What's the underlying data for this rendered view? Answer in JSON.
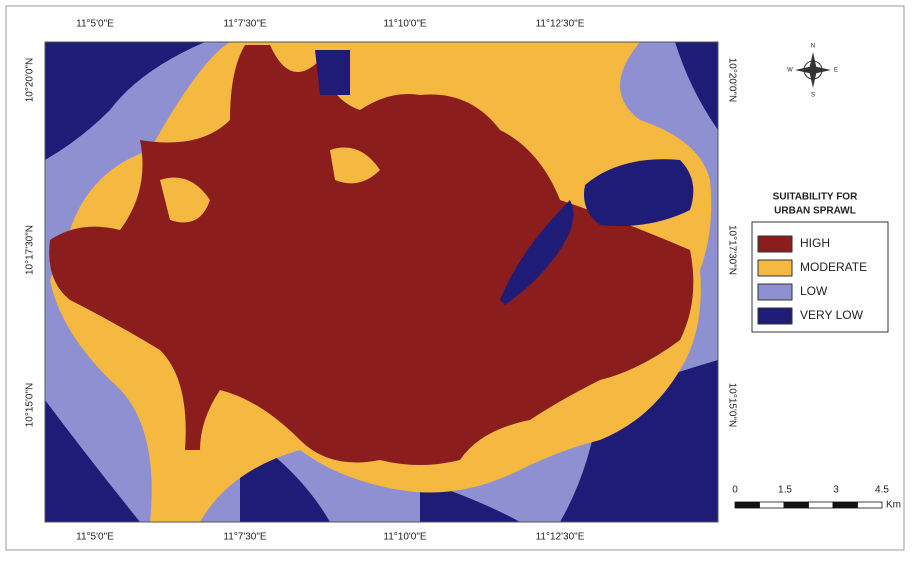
{
  "map": {
    "legend": {
      "title": [
        "SUITABILITY FOR",
        "URBAN SPRAWL"
      ],
      "items": [
        {
          "label": "HIGH",
          "color": "#8b1d1d"
        },
        {
          "label": "MODERATE",
          "color": "#f5b841"
        },
        {
          "label": "LOW",
          "color": "#8e90d2"
        },
        {
          "label": "VERY LOW",
          "color": "#1f1c78"
        }
      ]
    },
    "top_labels": [
      "11°5'0\"E",
      "11°7'30\"E",
      "11°10'0\"E",
      "11°12'30\"E"
    ],
    "bottom_labels": [
      "11°5'0\"E",
      "11°7'30\"E",
      "11°10'0\"E",
      "11°12'30\"E"
    ],
    "left_labels": [
      "10°20'0\"N",
      "10°17'30\"N",
      "10°15'0\"N"
    ],
    "right_labels": [
      "10°20'0\"N",
      "10°17'30\"N",
      "10°15'0\"N"
    ],
    "scale": {
      "ticks": [
        0,
        1.5,
        3,
        4.5
      ],
      "unit": "Km"
    },
    "compass": [
      "N",
      "E",
      "S",
      "W"
    ]
  }
}
